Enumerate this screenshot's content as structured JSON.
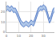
{
  "chart_data": {
    "type": "line",
    "x": [
      0,
      1,
      2,
      3,
      4,
      5,
      6,
      7,
      8,
      9,
      10,
      11,
      12,
      13,
      14,
      15,
      16,
      17,
      18,
      19,
      20,
      21,
      22,
      23,
      24,
      25,
      26,
      27,
      28,
      29,
      30,
      31,
      32,
      33,
      34,
      35,
      36,
      37,
      38,
      39
    ],
    "series": [
      {
        "color": "#5b80c8",
        "values": [
          21,
          22,
          21,
          20,
          22,
          21,
          19,
          20,
          18,
          15,
          12,
          9,
          7,
          6,
          5,
          6,
          7,
          6,
          5,
          6,
          8,
          7,
          6,
          9,
          13,
          17,
          20,
          21,
          22,
          21,
          23,
          22,
          21,
          17,
          12,
          9,
          11,
          15,
          19,
          20
        ]
      },
      {
        "color": "#5b80c8",
        "values": [
          25,
          26,
          25,
          24,
          26,
          25,
          23,
          24,
          22,
          19,
          16,
          13,
          11,
          10,
          9,
          10,
          11,
          10,
          9,
          10,
          12,
          11,
          10,
          13,
          17,
          21,
          24,
          25,
          26,
          25,
          27,
          26,
          25,
          21,
          16,
          13,
          15,
          19,
          23,
          24
        ]
      }
    ],
    "fill": "#aec6e8",
    "xlim": [
      0,
      39
    ],
    "xticks": [
      0,
      10,
      20,
      30
    ],
    "ylim": [
      0,
      30
    ],
    "yticks": [
      0,
      10,
      20,
      30
    ],
    "grid": true
  }
}
